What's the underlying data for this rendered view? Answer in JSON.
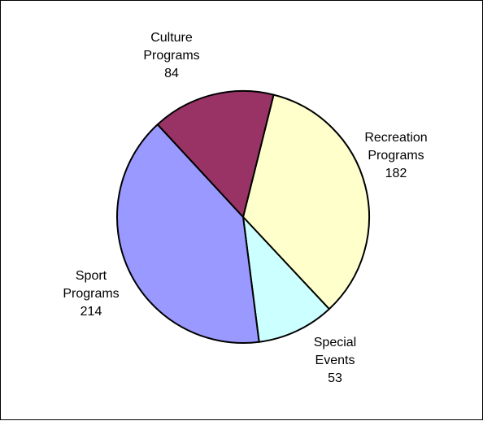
{
  "chart_data": {
    "type": "pie",
    "slices": [
      {
        "label_line1": "Recreation",
        "label_line2": "Programs",
        "value": 182,
        "color": "#FFFFCC"
      },
      {
        "label_line1": "Special",
        "label_line2": "Events",
        "value": 53,
        "color": "#CCFFFF"
      },
      {
        "label_line1": "Sport",
        "label_line2": "Programs",
        "value": 214,
        "color": "#9999FF"
      },
      {
        "label_line1": "Culture",
        "label_line2": "Programs",
        "value": 84,
        "color": "#993366"
      }
    ],
    "start_angle_deg": 14,
    "direction": "clockwise",
    "outline_color": "#000000"
  }
}
